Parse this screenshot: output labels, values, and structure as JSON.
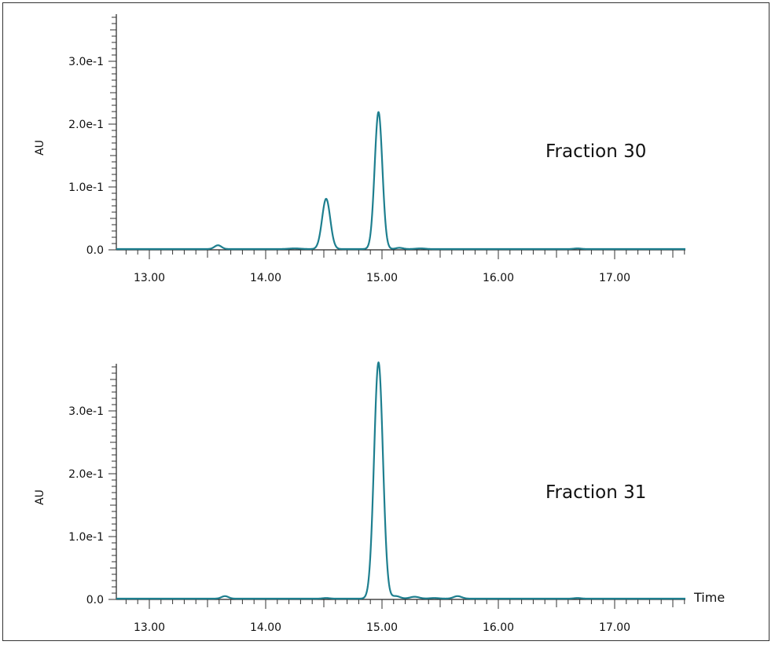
{
  "chart_data": [
    {
      "type": "line",
      "title": "Fraction 30",
      "annotation": "Fraction 30",
      "xlabel": "",
      "ylabel": "AU",
      "xlim": [
        12.72,
        17.61
      ],
      "ylim": [
        0,
        0.375
      ],
      "x_ticks": [
        13.0,
        14.0,
        15.0,
        16.0,
        17.0
      ],
      "x_tick_labels": [
        "13.00",
        "14.00",
        "15.00",
        "16.00",
        "17.00"
      ],
      "y_ticks": [
        0.0,
        0.1,
        0.2,
        0.3
      ],
      "y_tick_labels": [
        "0.0",
        "1.0e-1",
        "2.0e-1",
        "3.0e-1"
      ],
      "grid": false,
      "legend": null,
      "series": [
        {
          "name": "Fraction 30",
          "color": "#1e7f8f",
          "peaks": [
            {
              "time": 13.59,
              "height": 0.006,
              "width": 0.03
            },
            {
              "time": 14.25,
              "height": 0.001,
              "width": 0.05
            },
            {
              "time": 14.52,
              "height": 0.08,
              "width": 0.035
            },
            {
              "time": 14.97,
              "height": 0.218,
              "width": 0.033
            },
            {
              "time": 15.15,
              "height": 0.002,
              "width": 0.03
            },
            {
              "time": 15.33,
              "height": 0.001,
              "width": 0.04
            },
            {
              "time": 16.68,
              "height": 0.001,
              "width": 0.03
            }
          ]
        }
      ]
    },
    {
      "type": "line",
      "title": "Fraction 31",
      "annotation": "Fraction 31",
      "xlabel": "Time",
      "ylabel": "AU",
      "xlim": [
        12.72,
        17.61
      ],
      "ylim": [
        0,
        0.375
      ],
      "x_ticks": [
        13.0,
        14.0,
        15.0,
        16.0,
        17.0
      ],
      "x_tick_labels": [
        "13.00",
        "14.00",
        "15.00",
        "16.00",
        "17.00"
      ],
      "y_ticks": [
        0.0,
        0.1,
        0.2,
        0.3
      ],
      "y_tick_labels": [
        "0.0",
        "1.0e-1",
        "2.0e-1",
        "3.0e-1"
      ],
      "grid": false,
      "legend": null,
      "series": [
        {
          "name": "Fraction 31",
          "color": "#1e7f8f",
          "peaks": [
            {
              "time": 13.65,
              "height": 0.004,
              "width": 0.03
            },
            {
              "time": 14.52,
              "height": 0.001,
              "width": 0.03
            },
            {
              "time": 14.97,
              "height": 0.376,
              "width": 0.038
            },
            {
              "time": 15.12,
              "height": 0.004,
              "width": 0.035
            },
            {
              "time": 15.28,
              "height": 0.003,
              "width": 0.04
            },
            {
              "time": 15.45,
              "height": 0.001,
              "width": 0.04
            },
            {
              "time": 15.65,
              "height": 0.004,
              "width": 0.035
            },
            {
              "time": 16.68,
              "height": 0.001,
              "width": 0.03
            }
          ]
        }
      ]
    }
  ]
}
